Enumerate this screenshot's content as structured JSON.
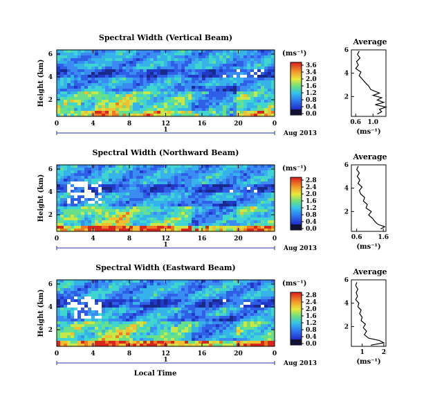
{
  "chart_data": [
    {
      "type": "heatmap",
      "title": "Spectral Width (Vertical Beam)",
      "ylabel": "Height (km)",
      "y_ticks": [
        "6",
        "4",
        "2"
      ],
      "x_ticks": [
        "0",
        "4",
        "8",
        "12",
        "16",
        "20",
        "0"
      ],
      "day_label": "1",
      "date_label": "Aug 2013",
      "colorbar": {
        "unit": "(ms⁻¹)",
        "ticks": [
          "3.6",
          "3.4",
          "2.0",
          "1.6",
          "1.2",
          "0.8",
          "0.4",
          "0.0"
        ]
      },
      "average": {
        "title": "Average",
        "xlabel": "(ms⁻¹)",
        "x_ticks": [
          "0.6",
          "1.0"
        ],
        "y_ticks": [
          "6",
          "4",
          "2"
        ],
        "xlim": [
          0.5,
          1.3
        ],
        "ylim": [
          0.3,
          6
        ],
        "profile": [
          [
            1.1,
            0.5
          ],
          [
            1.2,
            0.7
          ],
          [
            1.15,
            0.9
          ],
          [
            1.3,
            1.1
          ],
          [
            1.05,
            1.3
          ],
          [
            1.25,
            1.5
          ],
          [
            1.1,
            1.7
          ],
          [
            1.2,
            1.9
          ],
          [
            1.0,
            2.1
          ],
          [
            1.15,
            2.3
          ],
          [
            0.95,
            2.6
          ],
          [
            0.9,
            2.9
          ],
          [
            0.82,
            3.2
          ],
          [
            0.75,
            3.5
          ],
          [
            0.68,
            3.8
          ],
          [
            0.72,
            4.1
          ],
          [
            0.6,
            4.4
          ],
          [
            0.66,
            4.7
          ],
          [
            0.62,
            5.0
          ],
          [
            0.7,
            5.3
          ],
          [
            0.64,
            5.6
          ],
          [
            0.68,
            5.9
          ]
        ]
      }
    },
    {
      "type": "heatmap",
      "title": "Spectral Width (Northward Beam)",
      "ylabel": "Height (km)",
      "y_ticks": [
        "6",
        "4",
        "2"
      ],
      "x_ticks": [
        "0",
        "4",
        "8",
        "12",
        "16",
        "20",
        "0"
      ],
      "day_label": "1",
      "date_label": "Aug 2013",
      "colorbar": {
        "unit": "(ms⁻¹)",
        "ticks": [
          "2.8",
          "2.4",
          "2.0",
          "1.6",
          "1.2",
          "0.8",
          "0.4",
          "0.0"
        ]
      },
      "average": {
        "title": "Average",
        "xlabel": "(ms⁻¹)",
        "x_ticks": [
          "0.6",
          "1.6"
        ],
        "y_ticks": [
          "6",
          "4",
          "2"
        ],
        "xlim": [
          0.4,
          1.7
        ],
        "ylim": [
          0.3,
          6
        ],
        "profile": [
          [
            1.5,
            0.5
          ],
          [
            1.65,
            0.7
          ],
          [
            1.4,
            0.9
          ],
          [
            1.3,
            1.1
          ],
          [
            1.2,
            1.4
          ],
          [
            1.05,
            1.7
          ],
          [
            1.15,
            2.0
          ],
          [
            0.95,
            2.3
          ],
          [
            1.0,
            2.6
          ],
          [
            0.85,
            2.9
          ],
          [
            0.9,
            3.2
          ],
          [
            0.75,
            3.5
          ],
          [
            0.7,
            3.8
          ],
          [
            0.8,
            4.1
          ],
          [
            0.65,
            4.4
          ],
          [
            0.72,
            4.7
          ],
          [
            0.62,
            5.0
          ],
          [
            0.7,
            5.3
          ],
          [
            0.6,
            5.6
          ],
          [
            0.66,
            5.9
          ]
        ]
      }
    },
    {
      "type": "heatmap",
      "title": "Spectral Width (Eastward Beam)",
      "ylabel": "Height (km)",
      "y_ticks": [
        "6",
        "4",
        "2"
      ],
      "x_ticks": [
        "0",
        "4",
        "8",
        "12",
        "16",
        "20",
        "0"
      ],
      "day_label": "1",
      "date_label": "Aug 2013",
      "xlabel": "Local Time",
      "colorbar": {
        "unit": "(ms⁻¹)",
        "ticks": [
          "2.8",
          "2.4",
          "2.0",
          "1.6",
          "1.2",
          "0.8",
          "0.4",
          "0.0"
        ]
      },
      "average": {
        "title": "Average",
        "xlabel": "(ms⁻¹)",
        "x_ticks": [
          "1",
          "2"
        ],
        "y_ticks": [
          "6",
          "4",
          "2"
        ],
        "xlim": [
          0.5,
          2.1
        ],
        "ylim": [
          0.3,
          6
        ],
        "profile": [
          [
            1.4,
            0.4
          ],
          [
            2.0,
            0.6
          ],
          [
            1.8,
            0.8
          ],
          [
            1.3,
            1.0
          ],
          [
            1.1,
            1.3
          ],
          [
            1.2,
            1.6
          ],
          [
            1.05,
            1.9
          ],
          [
            1.15,
            2.2
          ],
          [
            0.95,
            2.5
          ],
          [
            1.0,
            2.8
          ],
          [
            0.88,
            3.1
          ],
          [
            0.95,
            3.4
          ],
          [
            0.8,
            3.7
          ],
          [
            0.85,
            4.0
          ],
          [
            0.7,
            4.3
          ],
          [
            0.78,
            4.6
          ],
          [
            0.72,
            4.9
          ],
          [
            0.8,
            5.2
          ],
          [
            0.7,
            5.5
          ],
          [
            0.75,
            5.8
          ]
        ]
      }
    }
  ]
}
